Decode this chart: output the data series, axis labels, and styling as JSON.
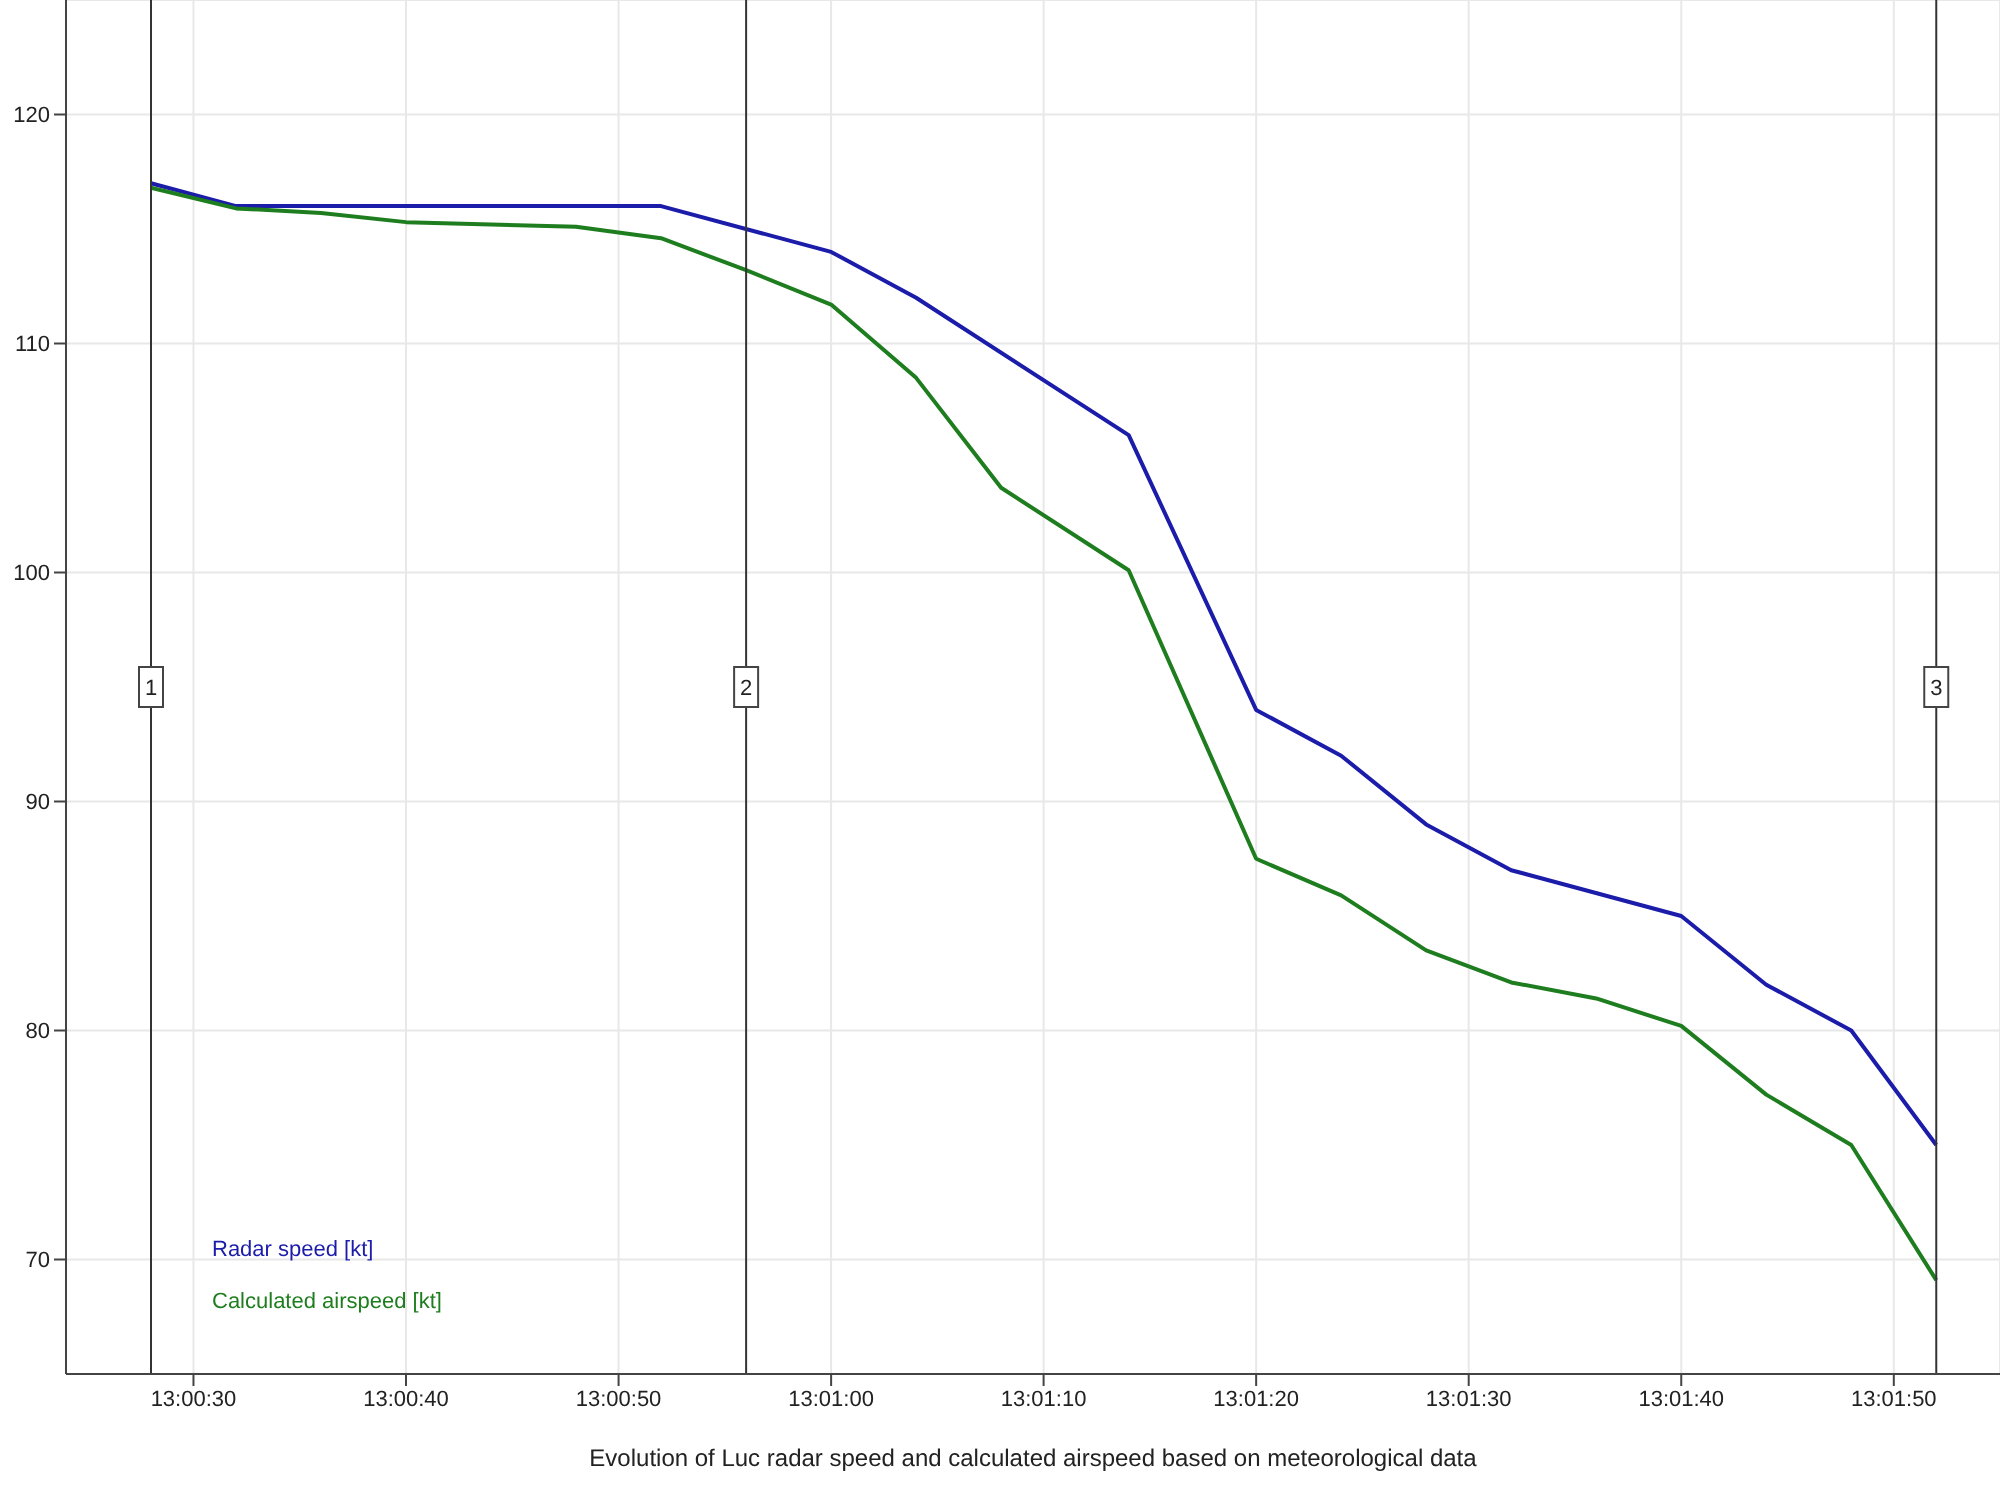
{
  "chart_data": {
    "type": "line",
    "xlabel": "Evolution of Luc radar speed and calculated airspeed based on meteorological data",
    "xlim": [
      13.006667,
      13.031944
    ],
    "xticks": [
      {
        "value": 13.008333,
        "label": "13:00:30"
      },
      {
        "value": 13.011111,
        "label": "13:00:40"
      },
      {
        "value": 13.013889,
        "label": "13:00:50"
      },
      {
        "value": 13.016667,
        "label": "13:01:00"
      },
      {
        "value": 13.019444,
        "label": "13:01:10"
      },
      {
        "value": 13.022222,
        "label": "13:01:20"
      },
      {
        "value": 13.025,
        "label": "13:01:30"
      },
      {
        "value": 13.027778,
        "label": "13:01:40"
      },
      {
        "value": 13.030556,
        "label": "13:01:50"
      }
    ],
    "ylim": [
      65,
      125
    ],
    "yticks": [
      70,
      80,
      90,
      100,
      110,
      120
    ],
    "grid": true,
    "legend": "bottom left",
    "marker": "none",
    "line_style": "solid",
    "series": [
      {
        "name": "Radar speed [kt]",
        "color": "#1c1caa",
        "x": [
          13.007778,
          13.008889,
          13.014444,
          13.016667,
          13.017778,
          13.020556,
          13.022222,
          13.023333,
          13.024444,
          13.025556,
          13.027778,
          13.028889,
          13.03,
          13.031111
        ],
        "values": [
          117,
          116,
          116,
          114,
          112,
          106,
          94,
          92,
          89,
          87,
          85,
          82,
          80,
          75
        ]
      },
      {
        "name": "Calculated airspeed [kt]",
        "color": "#1e7d1e",
        "x": [
          13.007778,
          13.008889,
          13.01,
          13.011111,
          13.012222,
          13.013333,
          13.014444,
          13.015556,
          13.016667,
          13.017778,
          13.018889,
          13.020556,
          13.022222,
          13.023333,
          13.024444,
          13.025556,
          13.026667,
          13.027778,
          13.028889,
          13.03,
          13.031111
        ],
        "values": [
          116.8,
          115.9,
          115.7,
          115.3,
          115.2,
          115.1,
          114.6,
          113.2,
          111.7,
          108.5,
          103.7,
          100.1,
          87.5,
          85.9,
          83.5,
          82.1,
          81.4,
          80.2,
          77.2,
          75,
          69.1
        ]
      }
    ],
    "ref_lines": [
      {
        "axis": "x",
        "value": 13.007778,
        "color": "#333333"
      },
      {
        "axis": "x",
        "value": 13.015556,
        "color": "#333333"
      },
      {
        "axis": "x",
        "value": 13.031111,
        "color": "#333333"
      }
    ],
    "annotations": [
      {
        "text": "1",
        "x": 13.007778,
        "y": 95
      },
      {
        "text": "2",
        "x": 13.015556,
        "y": 95
      },
      {
        "text": "3",
        "x": 13.031111,
        "y": 95
      }
    ]
  }
}
